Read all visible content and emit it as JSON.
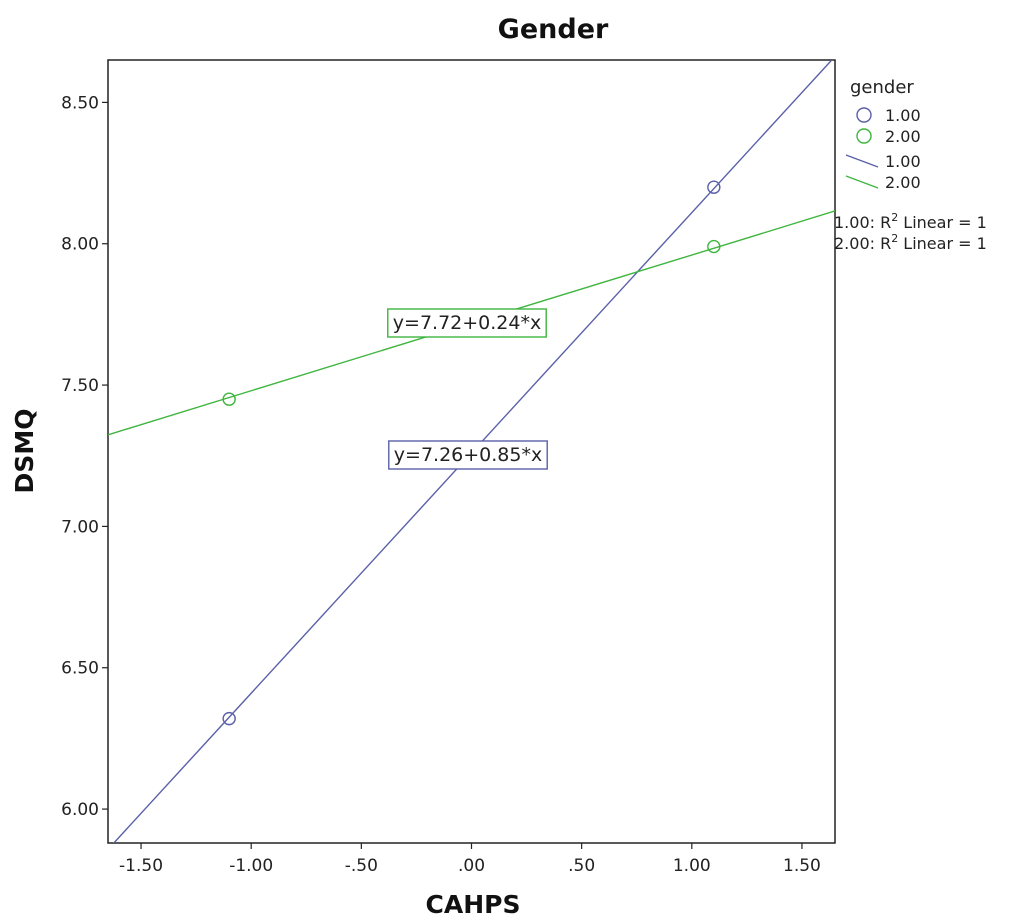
{
  "chart_data": {
    "type": "scatter",
    "title": "Gender",
    "xlabel": "CAHPS",
    "ylabel": "DSMQ",
    "xlim": [
      -1.65,
      1.65
    ],
    "ylim": [
      5.88,
      8.65
    ],
    "x_ticks": [
      -1.5,
      -1.0,
      -0.5,
      0.0,
      0.5,
      1.0,
      1.5
    ],
    "x_tick_labels": [
      "-1.50",
      "-1.00",
      "-.50",
      ".00",
      ".50",
      "1.00",
      "1.50"
    ],
    "y_ticks": [
      6.0,
      6.5,
      7.0,
      7.5,
      8.0,
      8.5
    ],
    "y_tick_labels": [
      "6.00",
      "6.50",
      "7.00",
      "7.50",
      "8.00",
      "8.50"
    ],
    "grid": false,
    "legend_position": "right",
    "legend_title": "gender",
    "series": [
      {
        "name": "1.00",
        "color": "#5a5fa8",
        "marker": "circle",
        "points": [
          {
            "x": -1.1,
            "y": 6.32
          },
          {
            "x": 1.1,
            "y": 8.2
          }
        ],
        "fit": {
          "intercept": 7.26,
          "slope": 0.85,
          "equation": "y=7.26+0.85*x",
          "r2_label": "1.00: R² Linear = 1"
        }
      },
      {
        "name": "2.00",
        "color": "#3fb53f",
        "marker": "circle",
        "points": [
          {
            "x": -1.1,
            "y": 7.45
          },
          {
            "x": 1.1,
            "y": 7.99
          }
        ],
        "fit": {
          "intercept": 7.72,
          "slope": 0.24,
          "equation": "y=7.72+0.24*x",
          "r2_label": "2.00: R² Linear = 1"
        }
      }
    ]
  }
}
